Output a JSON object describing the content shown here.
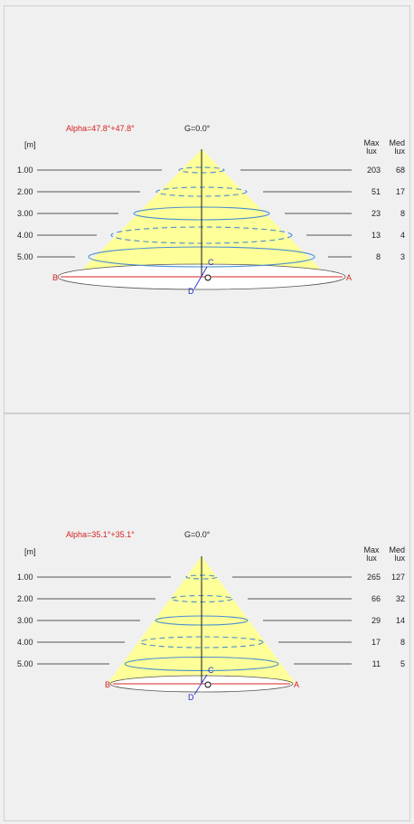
{
  "colors": {
    "cone_fill": "#ffff99",
    "iso_line": "#4a8fd0",
    "axis_line": "#000000",
    "alpha_text": "#d42020",
    "point_ab": "#d42020",
    "point_cd": "#2030c8"
  },
  "header": {
    "unit_label": "[m]",
    "max_label_line1": "Max",
    "max_label_line2": "lux",
    "med_label_line1": "Med",
    "med_label_line2": "lux"
  },
  "points": {
    "a": "A",
    "b": "B",
    "c": "C",
    "d": "D"
  },
  "diagrams": [
    {
      "alpha_label": "Alpha=47.8°+47.8°",
      "gamma_label": "G=0.0°",
      "rows": [
        {
          "distance": "1.00",
          "max_lux": "203",
          "med_lux": "68"
        },
        {
          "distance": "2.00",
          "max_lux": "51",
          "med_lux": "17"
        },
        {
          "distance": "3.00",
          "max_lux": "23",
          "med_lux": "8"
        },
        {
          "distance": "4.00",
          "max_lux": "13",
          "med_lux": "4"
        },
        {
          "distance": "5.00",
          "max_lux": "8",
          "med_lux": "3"
        }
      ]
    },
    {
      "alpha_label": "Alpha=35.1°+35.1°",
      "gamma_label": "G=0.0°",
      "rows": [
        {
          "distance": "1.00",
          "max_lux": "265",
          "med_lux": "127"
        },
        {
          "distance": "2.00",
          "max_lux": "66",
          "med_lux": "32"
        },
        {
          "distance": "3.00",
          "max_lux": "29",
          "med_lux": "14"
        },
        {
          "distance": "4.00",
          "max_lux": "17",
          "med_lux": "8"
        },
        {
          "distance": "5.00",
          "max_lux": "11",
          "med_lux": "5"
        }
      ]
    }
  ]
}
